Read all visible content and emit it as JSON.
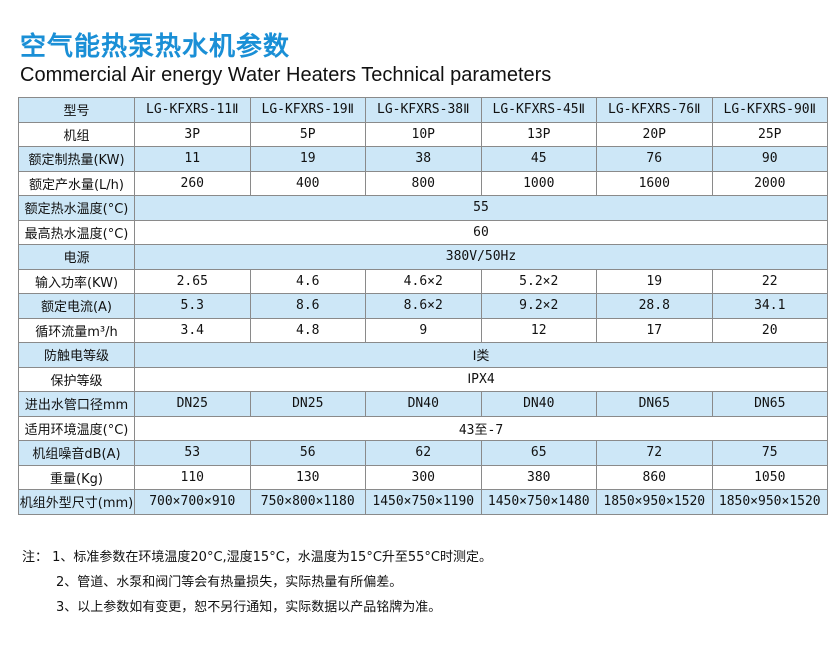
{
  "title": "空气能热泵热水机参数",
  "subtitle": "Commercial Air energy Water Heaters  Technical parameters",
  "rows": [
    {
      "label": "型号",
      "cells": [
        "LG-KFXRS-11Ⅱ",
        "LG-KFXRS-19Ⅱ",
        "LG-KFXRS-38Ⅱ",
        "LG-KFXRS-45Ⅱ",
        "LG-KFXRS-76Ⅱ",
        "LG-KFXRS-90Ⅱ"
      ]
    },
    {
      "label": "机组",
      "cells": [
        "3P",
        "5P",
        "10P",
        "13P",
        "20P",
        "25P"
      ]
    },
    {
      "label": "额定制热量(KW)",
      "cells": [
        "11",
        "19",
        "38",
        "45",
        "76",
        "90"
      ]
    },
    {
      "label": "额定产水量(L/h)",
      "cells": [
        "260",
        "400",
        "800",
        "1000",
        "1600",
        "2000"
      ]
    },
    {
      "label": "额定热水温度(°C)",
      "cells": [
        "55"
      ]
    },
    {
      "label": "最高热水温度(°C)",
      "cells": [
        "60"
      ]
    },
    {
      "label": "电源",
      "cells": [
        "380V/50Hz"
      ]
    },
    {
      "label": "输入功率(KW)",
      "cells": [
        "2.65",
        "4.6",
        "4.6×2",
        "5.2×2",
        "19",
        "22"
      ]
    },
    {
      "label": "额定电流(A)",
      "cells": [
        "5.3",
        "8.6",
        "8.6×2",
        "9.2×2",
        "28.8",
        "34.1"
      ]
    },
    {
      "label": "循环流量m³/h",
      "cells": [
        "3.4",
        "4.8",
        "9",
        "12",
        "17",
        "20"
      ]
    },
    {
      "label": "防触电等级",
      "cells": [
        "Ⅰ类"
      ]
    },
    {
      "label": "保护等级",
      "cells": [
        "ⅠPX4"
      ]
    },
    {
      "label": "进出水管口径mm",
      "cells": [
        "DN25",
        "DN25",
        "DN40",
        "DN40",
        "DN65",
        "DN65"
      ]
    },
    {
      "label": "适用环境温度(°C)",
      "cells": [
        "43至-7"
      ]
    },
    {
      "label": "机组噪音dB(A)",
      "cells": [
        "53",
        "56",
        "62",
        "65",
        "72",
        "75"
      ]
    },
    {
      "label": "重量(Kg)",
      "cells": [
        "110",
        "130",
        "300",
        "380",
        "860",
        "1050"
      ]
    },
    {
      "label": "机组外型尺寸(mm)",
      "cells": [
        "700×700×910",
        "750×800×1180",
        "1450×750×1190",
        "1450×750×1480",
        "1850×950×1520",
        "1850×950×1520"
      ]
    }
  ],
  "notes": [
    "注：  1、标准参数在环境温度20°C,湿度15°C，水温度为15°C升至55°C时测定。",
    "2、管道、水泵和阀门等会有热量损失，实际热量有所偏差。",
    "3、以上参数如有变更，恕不另行通知，实际数据以产品铭牌为准。"
  ]
}
